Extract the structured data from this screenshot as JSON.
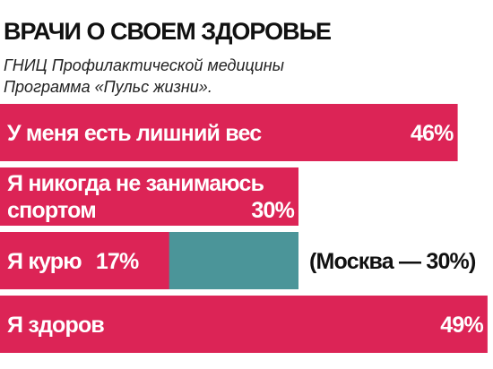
{
  "title": "ВРАЧИ О СВОЕМ ЗДОРОВЬЕ",
  "subtitle_lines": [
    "ГНИЦ Профилактической медицины",
    "Программа «Пульс жизни»."
  ],
  "colors": {
    "bar": "#dc2456",
    "comparison": "#4b9599",
    "text": "#111111"
  },
  "chart_data": {
    "type": "bar",
    "orientation": "horizontal",
    "categories": [
      [
        "У меня есть лишний вес"
      ],
      [
        "Я никогда не занимаюсь",
        "спортом"
      ],
      [
        "Я курю"
      ],
      [
        "Я здоров"
      ]
    ],
    "values": [
      46,
      30,
      17,
      49
    ],
    "value_labels": [
      "46%",
      "30%",
      "17%",
      "49%"
    ],
    "comparison": {
      "category_index": 2,
      "label": "Москва",
      "value": 30,
      "text": "(Москва — 30%)"
    },
    "unit": "%"
  }
}
